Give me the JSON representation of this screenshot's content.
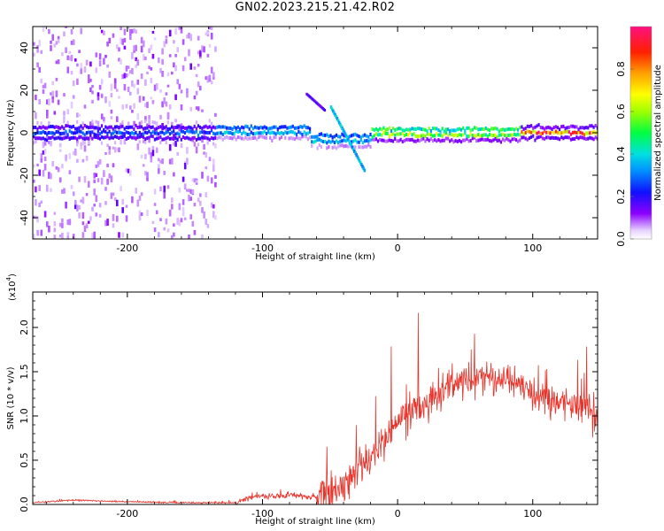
{
  "title": "GN02.2023.215.21.42.R02",
  "chart_data": [
    {
      "type": "heatmap",
      "title": "GN02.2023.215.21.42.R02",
      "xlabel": "Height of straight line (km)",
      "ylabel": "Frequency (Hz)",
      "xlim": [
        -270,
        148
      ],
      "ylim": [
        -50,
        50
      ],
      "xticks": [
        -200,
        -100,
        0,
        100
      ],
      "yticks": [
        -40,
        -20,
        0,
        20,
        40
      ],
      "colorbar": {
        "label": "Normalized spectral amplitude",
        "range": [
          0.0,
          1.0
        ],
        "ticks": [
          "0.0",
          "0.2",
          "0.4",
          "0.6",
          "0.8"
        ],
        "colormap": "rainbow (purple→blue→cyan→green→yellow→orange→red→pink)"
      },
      "features": [
        {
          "x_range": [
            -270,
            -135
          ],
          "freq_center": 0,
          "amplitude": 0.3,
          "description": "strong band around 0 Hz with diffuse speckle over full frequency range"
        },
        {
          "x_range": [
            -150,
            -65
          ],
          "freq_center": 1,
          "amplitude": 0.45
        },
        {
          "x_range": [
            -65,
            -20
          ],
          "freq_center": -3,
          "amplitude": 0.45
        },
        {
          "x_range": [
            -20,
            90
          ],
          "freq_center": 0,
          "amplitude": 0.75
        },
        {
          "x_range": [
            90,
            148
          ],
          "freq_center": 0,
          "amplitude": 0.95
        }
      ]
    },
    {
      "type": "line",
      "xlabel": "Height of straight line (km)",
      "ylabel": "SNR (10 * v/v)",
      "y_multiplier": "(x10^4)",
      "xlim": [
        -270,
        148
      ],
      "ylim": [
        0,
        2.4
      ],
      "xticks": [
        -200,
        -100,
        0,
        100
      ],
      "yticks": [
        0.0,
        0.5,
        1.0,
        1.5,
        2.0
      ],
      "color": "#e8332a",
      "series": [
        {
          "x": [
            -270,
            -240,
            -200,
            -160,
            -120,
            -110,
            -100,
            -80,
            -60,
            -40,
            -30,
            -20,
            -10,
            0,
            10,
            20,
            40,
            60,
            80,
            100,
            120,
            148
          ],
          "y": [
            0.02,
            0.05,
            0.03,
            0.02,
            0.02,
            0.08,
            0.09,
            0.1,
            0.08,
            0.2,
            0.4,
            0.55,
            0.7,
            0.9,
            1.05,
            1.15,
            1.35,
            1.45,
            1.4,
            1.25,
            1.15,
            1.05
          ]
        }
      ]
    }
  ],
  "text": {
    "x_tick_labels": [
      "-200",
      "-100",
      "0",
      "100"
    ],
    "top_y_tick_labels": [
      "-40",
      "-20",
      "0",
      "20",
      "40"
    ],
    "bottom_y_tick_labels": [
      "0.0",
      "0.5",
      "1.0",
      "1.5",
      "2.0"
    ],
    "colorbar_tick_labels": [
      "0.0",
      "0.2",
      "0.4",
      "0.6",
      "0.8"
    ],
    "top_xlabel": "Height of straight line (km)",
    "bottom_xlabel": "Height of straight line (km)",
    "top_ylabel": "Frequency (Hz)",
    "bottom_ylabel": "SNR (10 * v/v)",
    "bottom_multiplier": "(x10",
    "bottom_multiplier_exp": "4",
    "bottom_multiplier_close": ")",
    "colorbar_label": "Normalized spectral amplitude"
  }
}
